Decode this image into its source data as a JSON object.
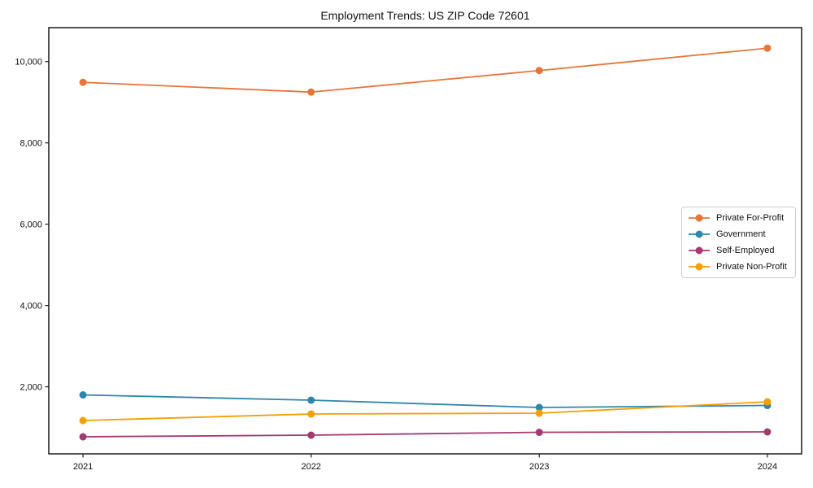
{
  "figure": {
    "background": "#ffffff",
    "title": "Employment Trends: US ZIP Code 72601"
  },
  "chart_data": {
    "type": "line",
    "title": "Employment Trends: US ZIP Code 72601",
    "xlabel": "",
    "ylabel": "",
    "x": [
      2021,
      2022,
      2023,
      2024
    ],
    "x_tick_labels": [
      "2021",
      "2022",
      "2023",
      "2024"
    ],
    "y_ticks": {
      "values": [
        2000,
        4000,
        6000,
        8000,
        10000
      ],
      "labels": [
        "2,000",
        "4,000",
        "6,000",
        "8,000",
        "10,000"
      ]
    },
    "xlim": [
      2020.85,
      2024.15
    ],
    "ylim": [
      350,
      10835
    ],
    "grid": false,
    "legend": {
      "position": "center-right",
      "border_color": "#cccccc",
      "background": "#ffffff"
    },
    "axis_color": "#1a1a1a",
    "series": [
      {
        "name": "Private For-Profit",
        "color": "#E8743B",
        "values": [
          9490,
          9250,
          9780,
          10330
        ]
      },
      {
        "name": "Government",
        "color": "#2E86AB",
        "values": [
          1800,
          1670,
          1490,
          1540
        ]
      },
      {
        "name": "Self-Employed",
        "color": "#A23B72",
        "values": [
          770,
          810,
          880,
          890
        ]
      },
      {
        "name": "Private Non-Profit",
        "color": "#F2A104",
        "values": [
          1170,
          1330,
          1350,
          1630
        ]
      }
    ],
    "marker": "circle",
    "marker_radius": 4.5,
    "line_width": 1.8
  }
}
